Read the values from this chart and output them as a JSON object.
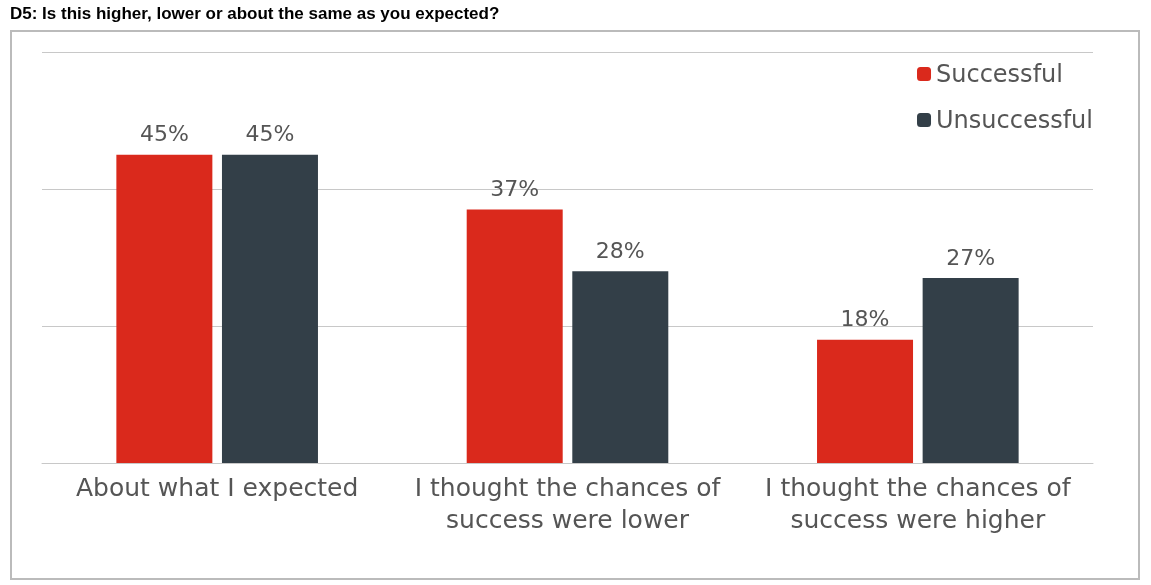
{
  "chart_data": {
    "type": "bar",
    "title": "D5: Is this higher, lower or about the same as you expected?",
    "categories": [
      "About what I expected",
      "I thought the chances of success were lower",
      "I thought the chances of success were higher"
    ],
    "series": [
      {
        "name": "Successful",
        "color": "#da291c",
        "values": [
          45,
          37,
          18
        ],
        "value_labels": [
          "45%",
          "37%",
          "18%"
        ]
      },
      {
        "name": "Unsuccessful",
        "color": "#333f48",
        "values": [
          45,
          28,
          27
        ],
        "value_labels": [
          "45%",
          "28%",
          "27%"
        ]
      }
    ],
    "ylim": [
      0,
      60
    ],
    "yticks": [
      {
        "value": 0,
        "label": null
      },
      {
        "value": 20,
        "label": null
      },
      {
        "value": 40,
        "label": null
      },
      {
        "value": 60,
        "label": null
      }
    ],
    "tick_labels": "x",
    "grid": "y",
    "legend": "top right"
  }
}
